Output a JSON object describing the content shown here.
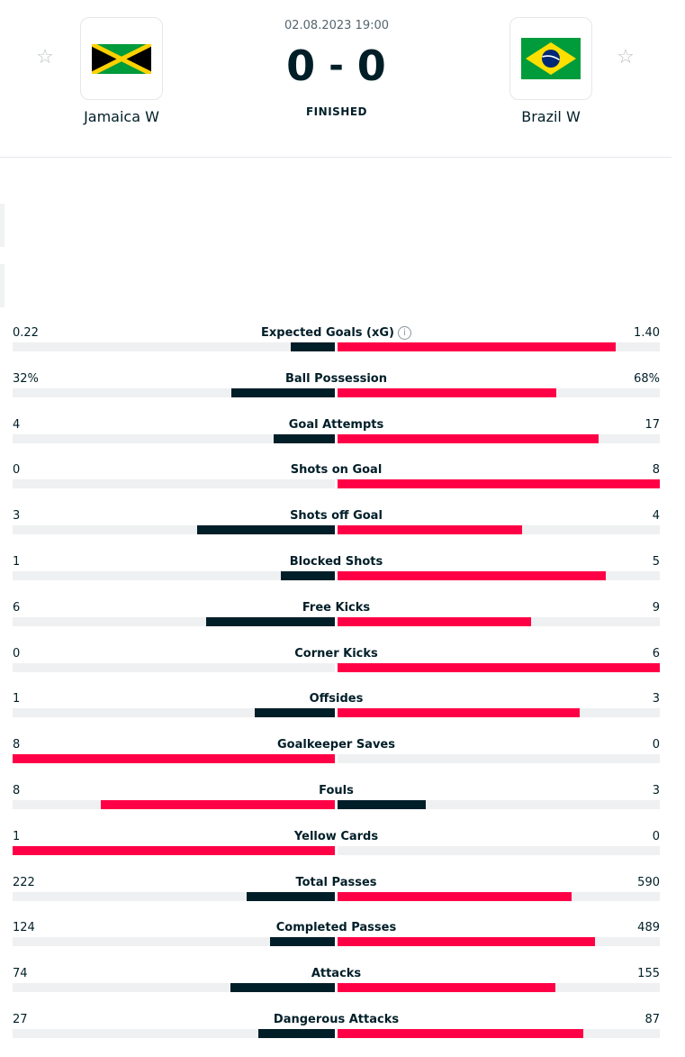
{
  "match": {
    "date_time": "02.08.2023 19:00",
    "home_score": "0",
    "separator": "-",
    "away_score": "0",
    "status": "FINISHED",
    "home_team": "Jamaica W",
    "away_team": "Brazil W"
  },
  "colors": {
    "leader": "#ff0046",
    "trailer": "#001e28",
    "track": "#eef0f1"
  },
  "stats": [
    {
      "name": "Expected Goals (xG)",
      "home": "0.22",
      "away": "1.40",
      "home_val": 0.22,
      "away_val": 1.4,
      "info": true
    },
    {
      "name": "Ball Possession",
      "home": "32%",
      "away": "68%",
      "home_val": 32,
      "away_val": 68
    },
    {
      "name": "Goal Attempts",
      "home": "4",
      "away": "17",
      "home_val": 4,
      "away_val": 17
    },
    {
      "name": "Shots on Goal",
      "home": "0",
      "away": "8",
      "home_val": 0,
      "away_val": 8
    },
    {
      "name": "Shots off Goal",
      "home": "3",
      "away": "4",
      "home_val": 3,
      "away_val": 4
    },
    {
      "name": "Blocked Shots",
      "home": "1",
      "away": "5",
      "home_val": 1,
      "away_val": 5
    },
    {
      "name": "Free Kicks",
      "home": "6",
      "away": "9",
      "home_val": 6,
      "away_val": 9
    },
    {
      "name": "Corner Kicks",
      "home": "0",
      "away": "6",
      "home_val": 0,
      "away_val": 6
    },
    {
      "name": "Offsides",
      "home": "1",
      "away": "3",
      "home_val": 1,
      "away_val": 3
    },
    {
      "name": "Goalkeeper Saves",
      "home": "8",
      "away": "0",
      "home_val": 8,
      "away_val": 0
    },
    {
      "name": "Fouls",
      "home": "8",
      "away": "3",
      "home_val": 8,
      "away_val": 3
    },
    {
      "name": "Yellow Cards",
      "home": "1",
      "away": "0",
      "home_val": 1,
      "away_val": 0
    },
    {
      "name": "Total Passes",
      "home": "222",
      "away": "590",
      "home_val": 222,
      "away_val": 590
    },
    {
      "name": "Completed Passes",
      "home": "124",
      "away": "489",
      "home_val": 124,
      "away_val": 489
    },
    {
      "name": "Attacks",
      "home": "74",
      "away": "155",
      "home_val": 74,
      "away_val": 155
    },
    {
      "name": "Dangerous Attacks",
      "home": "27",
      "away": "87",
      "home_val": 27,
      "away_val": 87
    }
  ]
}
